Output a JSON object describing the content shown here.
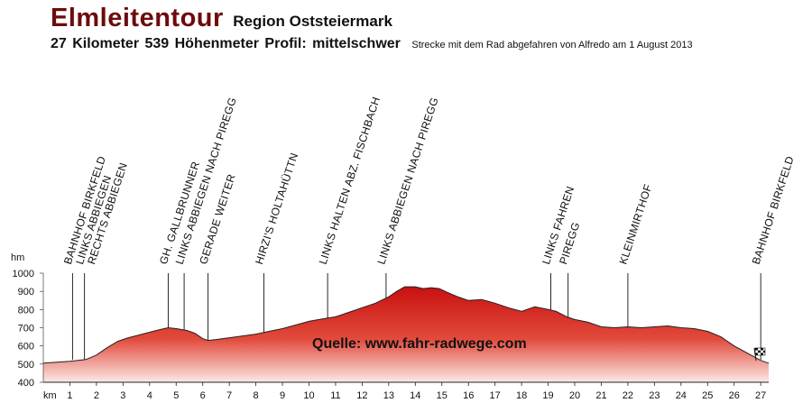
{
  "header": {
    "title": "Elmleitentour",
    "region": "Region Oststeiermark",
    "stats": "27 Kilometer  539 Höhenmeter  Profil: mittelschwer",
    "note": "Strecke mit dem Rad abgefahren von Alfredo am 1 August 2013"
  },
  "chart_data": {
    "type": "area",
    "title": "Elmleitentour",
    "ylabel": "hm",
    "xlabel": "km",
    "xlim": [
      0,
      27.3
    ],
    "ylim": [
      400,
      1000
    ],
    "x_ticks": [
      1,
      2,
      3,
      4,
      5,
      6,
      7,
      8,
      9,
      10,
      11,
      12,
      13,
      14,
      15,
      16,
      17,
      18,
      19,
      20,
      21,
      22,
      23,
      24,
      25,
      26,
      27
    ],
    "y_ticks": [
      400,
      500,
      600,
      700,
      800,
      900,
      1000
    ],
    "grid": false,
    "fill_color_top": "#c81010",
    "fill_color_bottom": "#fbe9e7",
    "line_color": "#222222",
    "source_note": "Quelle: www.fahr-radwege.com",
    "series": [
      {
        "x": [
          0,
          0.5,
          1,
          1.6,
          2,
          2.4,
          2.8,
          3.2,
          3.6,
          4,
          4.4,
          4.7,
          5,
          5.4,
          5.7,
          6,
          6.2,
          6.5,
          7,
          7.5,
          8,
          8.5,
          9,
          9.5,
          10,
          10.5,
          11,
          11.5,
          12,
          12.5,
          13,
          13.3,
          13.6,
          14,
          14.3,
          14.6,
          14.9,
          15.2,
          15.6,
          16,
          16.5,
          17,
          17.5,
          18,
          18.5,
          19,
          19.3,
          19.7,
          20,
          20.5,
          21,
          21.5,
          22,
          22.5,
          23,
          23.5,
          24,
          24.5,
          25,
          25.5,
          26,
          26.5,
          27,
          27.3
        ],
        "y": [
          505,
          510,
          515,
          525,
          550,
          590,
          625,
          645,
          660,
          675,
          690,
          700,
          695,
          685,
          670,
          640,
          630,
          635,
          645,
          655,
          665,
          680,
          695,
          715,
          735,
          748,
          760,
          785,
          810,
          835,
          870,
          900,
          925,
          925,
          915,
          920,
          915,
          895,
          870,
          850,
          855,
          835,
          810,
          790,
          815,
          800,
          790,
          760,
          745,
          730,
          705,
          700,
          705,
          700,
          705,
          710,
          700,
          695,
          680,
          650,
          600,
          560,
          520,
          505
        ]
      }
    ],
    "waypoints": [
      {
        "km": 1.1,
        "label": "BAHNHOF BIRKFELD"
      },
      {
        "km": 1.55,
        "label": "LINKS ABBIEGEN"
      },
      {
        "km": 1.55,
        "label": "RECHTS ABBIEGEN"
      },
      {
        "km": 4.7,
        "label": "GH. GALLBRUNNER"
      },
      {
        "km": 5.3,
        "label": "LINKS ABBIEGEN NACH PIREGG"
      },
      {
        "km": 6.2,
        "label": "GERADE WEITER"
      },
      {
        "km": 8.3,
        "label": "HIRZI'S HOLTAHÜTTN"
      },
      {
        "km": 10.7,
        "label": "LINKS HALTEN ABZ. FISCHBACH"
      },
      {
        "km": 12.9,
        "label": "LINKS ABBIEGEN NACH PIREGG"
      },
      {
        "km": 19.1,
        "label": "LINKS FAHREN"
      },
      {
        "km": 19.75,
        "label": "PIREGG"
      },
      {
        "km": 22.0,
        "label": "KLEINMIRTHOF"
      },
      {
        "km": 27.0,
        "label": "BAHNHOF BIRKFELD"
      }
    ]
  }
}
